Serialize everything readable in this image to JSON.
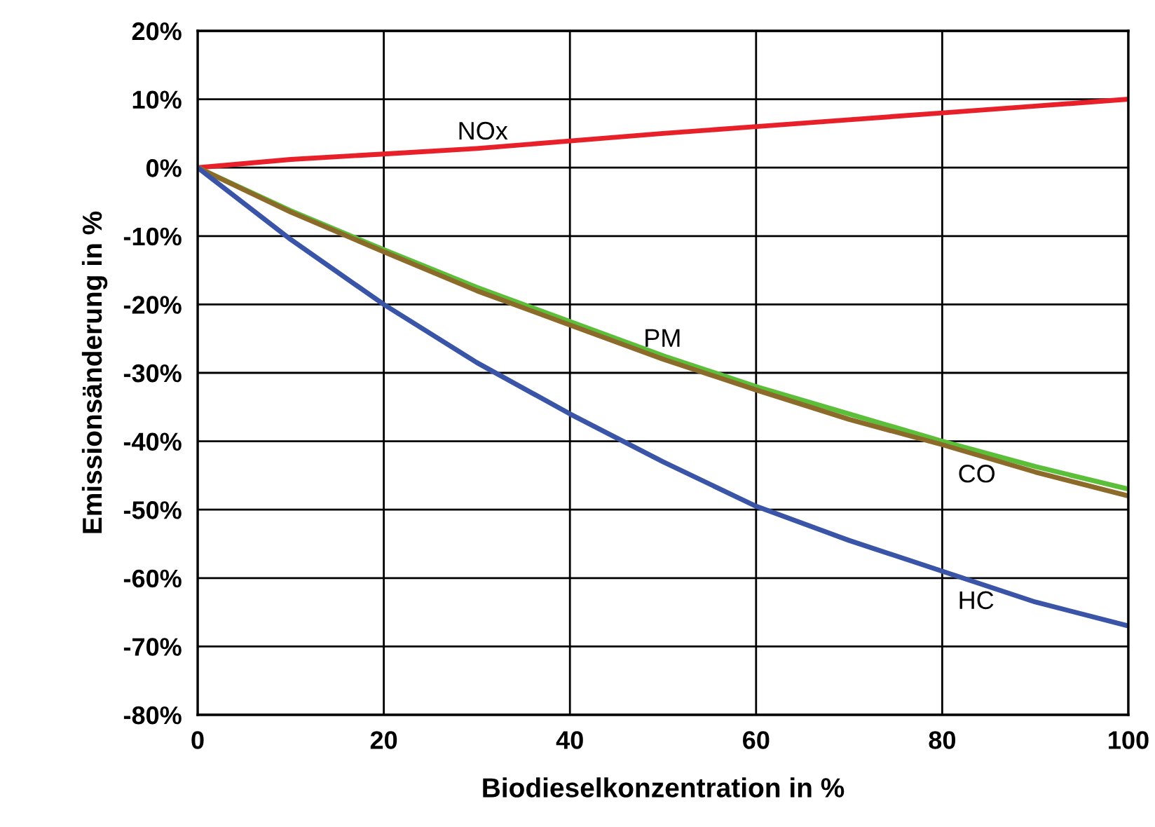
{
  "chart_data": {
    "type": "line",
    "xlabel": "Biodieselkonzentration in %",
    "ylabel": "Emissionsänderung in %",
    "xlim": [
      0,
      100
    ],
    "xticks": [
      0,
      20,
      40,
      60,
      80,
      100
    ],
    "ylim": [
      -80,
      20
    ],
    "yticks": [
      {
        "value": -80,
        "label": "-80%"
      },
      {
        "value": -70,
        "label": "-70%"
      },
      {
        "value": -60,
        "label": "-60%"
      },
      {
        "value": -50,
        "label": "-50%"
      },
      {
        "value": -40,
        "label": "-40%"
      },
      {
        "value": -30,
        "label": "-30%"
      },
      {
        "value": -20,
        "label": "-20%"
      },
      {
        "value": -10,
        "label": "-10%"
      },
      {
        "value": 0,
        "label": "0%"
      },
      {
        "value": 10,
        "label": "10%"
      },
      {
        "value": 20,
        "label": "20%"
      }
    ],
    "grid": true,
    "legend": false,
    "marker": "none",
    "line_style": "solid",
    "x": [
      0,
      10,
      20,
      30,
      40,
      50,
      60,
      70,
      80,
      90,
      100
    ],
    "series": [
      {
        "name": "NOx",
        "color": "#e8202a",
        "values": [
          0,
          1.2,
          2,
          2.8,
          3.9,
          5,
          6,
          7,
          8,
          9,
          10
        ]
      },
      {
        "name": "PM",
        "color": "#5cbf3a",
        "values": [
          0,
          -6.3,
          -12,
          -17.5,
          -22.5,
          -27.5,
          -32,
          -36,
          -40,
          -43.7,
          -47
        ]
      },
      {
        "name": "CO",
        "color": "#8b6a2a",
        "values": [
          0,
          -6.5,
          -12.3,
          -18,
          -23,
          -28,
          -32.5,
          -36.8,
          -40.5,
          -44.5,
          -48
        ]
      },
      {
        "name": "HC",
        "color": "#3a55a8",
        "values": [
          0,
          -10.5,
          -20,
          -28.5,
          -36,
          -43,
          -49.5,
          -54.5,
          -59,
          -63.5,
          -67
        ]
      }
    ]
  }
}
